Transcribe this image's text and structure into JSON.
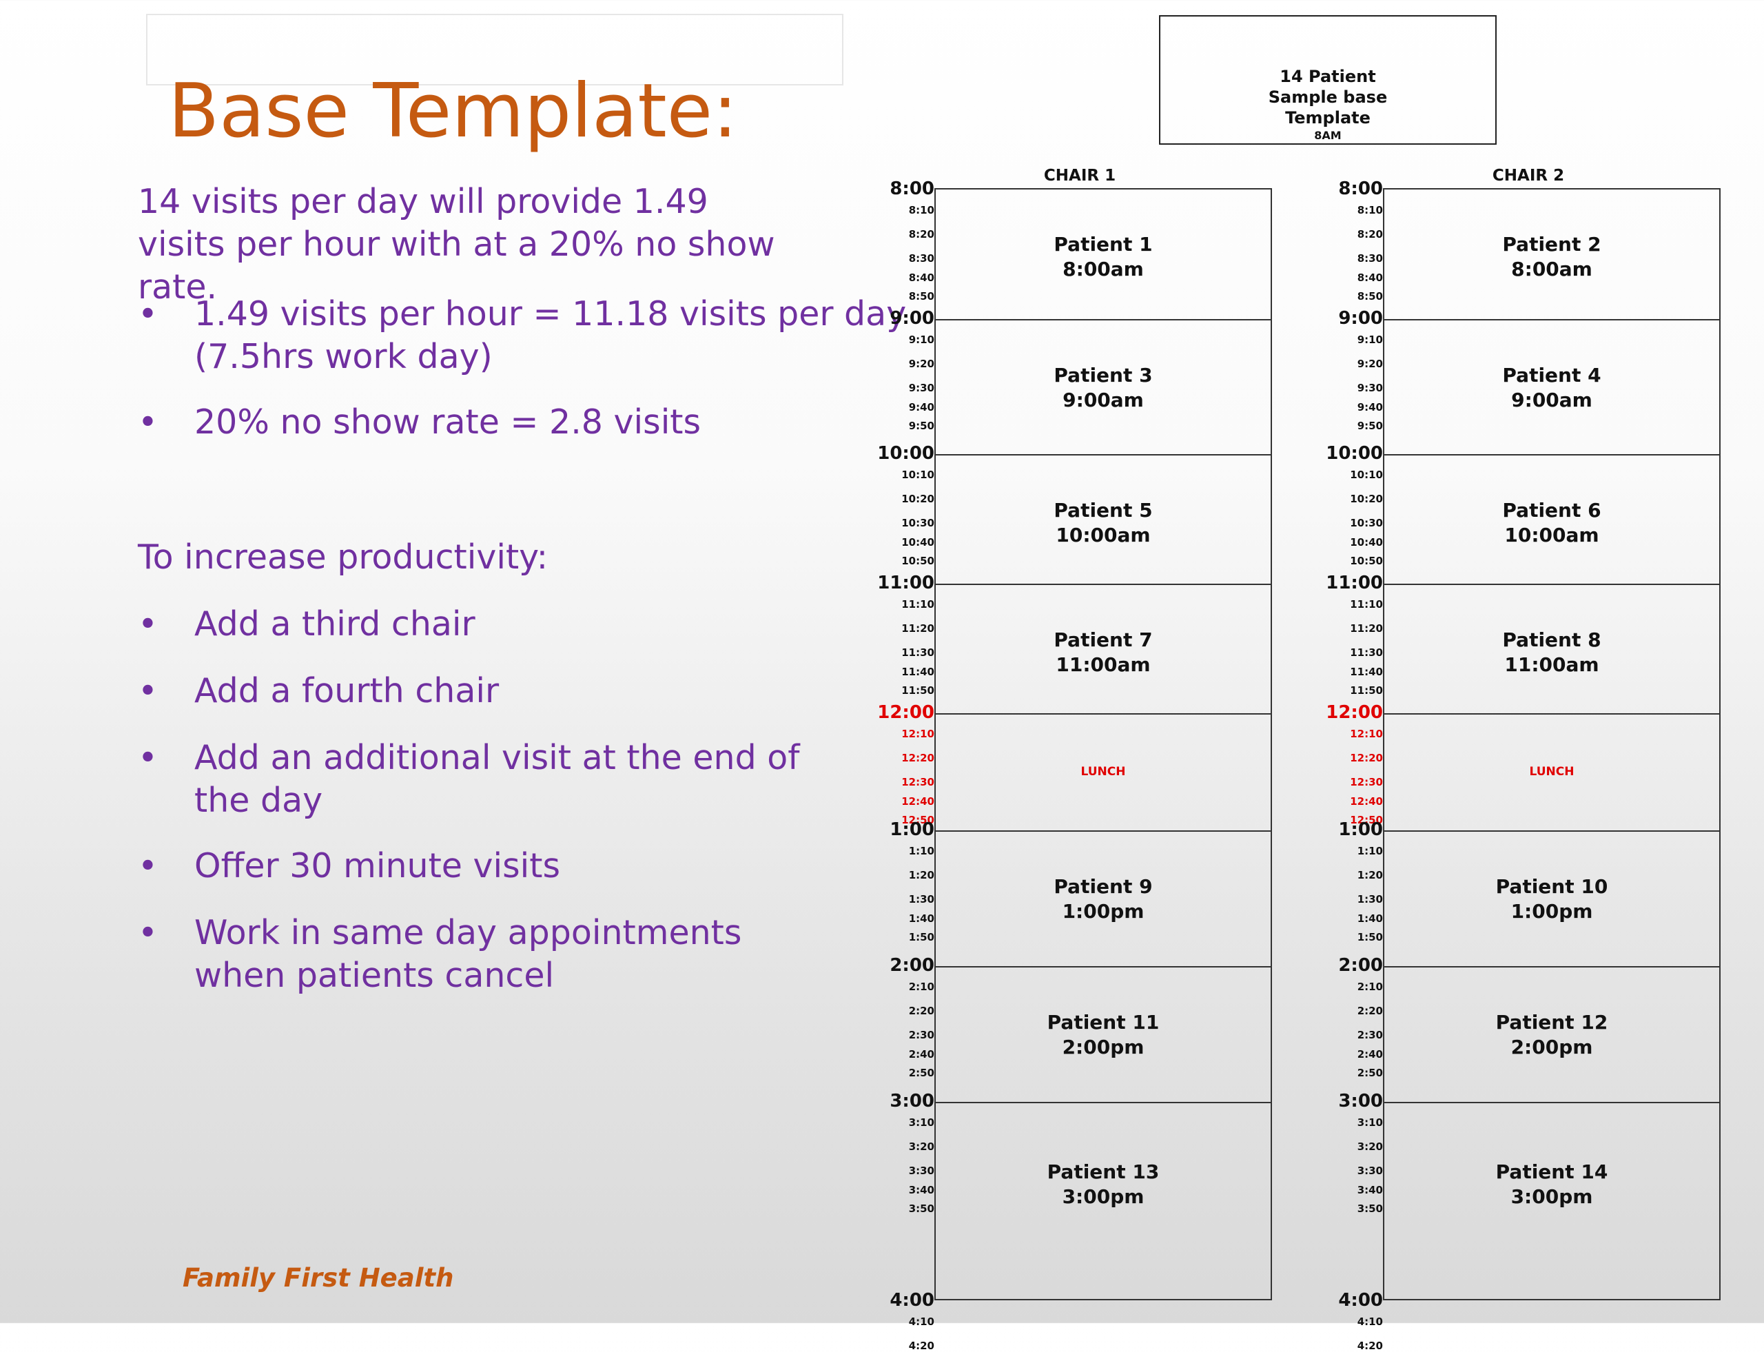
{
  "slide": {
    "title": "Base Template:",
    "intro": "14 visits per day will provide 1.49 visits per hour with at a 20% no show rate.",
    "bullets_a": [
      "1.49 visits per hour = 11.18 visits per day (7.5hrs work day)",
      "20% no show rate = 2.8 visits"
    ],
    "subheading": "To increase productivity:",
    "bullets_b": [
      "Add a third chair",
      "Add a fourth chair",
      "Add an additional visit at the end of the day",
      "Offer 30 minute visits",
      "Work in same day appointments when patients cancel"
    ],
    "bullet_glyph": "•",
    "footer": "Family First Health"
  },
  "schedule": {
    "header_lines": [
      "14 Patient",
      "Sample base",
      "Template"
    ],
    "header_small": "8AM",
    "chairs": [
      {
        "label": "CHAIR 1",
        "slots": [
          {
            "name": "Patient 1",
            "time": "8:00am"
          },
          {
            "name": "Patient 3",
            "time": "9:00am"
          },
          {
            "name": "Patient 5",
            "time": "10:00am"
          },
          {
            "name": "Patient 7",
            "time": "11:00am"
          },
          {
            "name": "LUNCH",
            "time": "",
            "lunch": true
          },
          {
            "name": "Patient 9",
            "time": "1:00pm"
          },
          {
            "name": "Patient 11",
            "time": "2:00pm"
          },
          {
            "name": "Patient 13",
            "time": "3:00pm"
          }
        ]
      },
      {
        "label": "CHAIR 2",
        "slots": [
          {
            "name": "Patient 2",
            "time": "8:00am"
          },
          {
            "name": "Patient 4",
            "time": "9:00am"
          },
          {
            "name": "Patient 6",
            "time": "10:00am"
          },
          {
            "name": "Patient 8",
            "time": "11:00am"
          },
          {
            "name": "LUNCH",
            "time": "",
            "lunch": true
          },
          {
            "name": "Patient 10",
            "time": "1:00pm"
          },
          {
            "name": "Patient 12",
            "time": "2:00pm"
          },
          {
            "name": "Patient 14",
            "time": "3:00pm"
          }
        ]
      }
    ],
    "hours": [
      {
        "hour": "8:00",
        "minutes": [
          "8:10",
          "8:20",
          "8:30",
          "8:40",
          "8:50"
        ]
      },
      {
        "hour": "9:00",
        "minutes": [
          "9:10",
          "9:20",
          "9:30",
          "9:40",
          "9:50"
        ]
      },
      {
        "hour": "10:00",
        "minutes": [
          "10:10",
          "10:20",
          "10:30",
          "10:40",
          "10:50"
        ]
      },
      {
        "hour": "11:00",
        "minutes": [
          "11:10",
          "11:20",
          "11:30",
          "11:40",
          "11:50"
        ]
      },
      {
        "hour": "12:00",
        "minutes": [
          "12:10",
          "12:20",
          "12:30",
          "12:40",
          "12:50"
        ],
        "red": true
      },
      {
        "hour": "1:00",
        "minutes": [
          "1:10",
          "1:20",
          "1:30",
          "1:40",
          "1:50"
        ]
      },
      {
        "hour": "2:00",
        "minutes": [
          "2:10",
          "2:20",
          "2:30",
          "2:40",
          "2:50"
        ]
      },
      {
        "hour": "3:00",
        "minutes": [
          "3:10",
          "3:20",
          "3:30",
          "3:40",
          "3:50"
        ]
      },
      {
        "hour": "4:00",
        "minutes": [
          "4:10",
          "4:20"
        ]
      }
    ],
    "colors": {
      "lunch": "#e00000",
      "title": "#c55a11",
      "body": "#7030a0"
    }
  }
}
